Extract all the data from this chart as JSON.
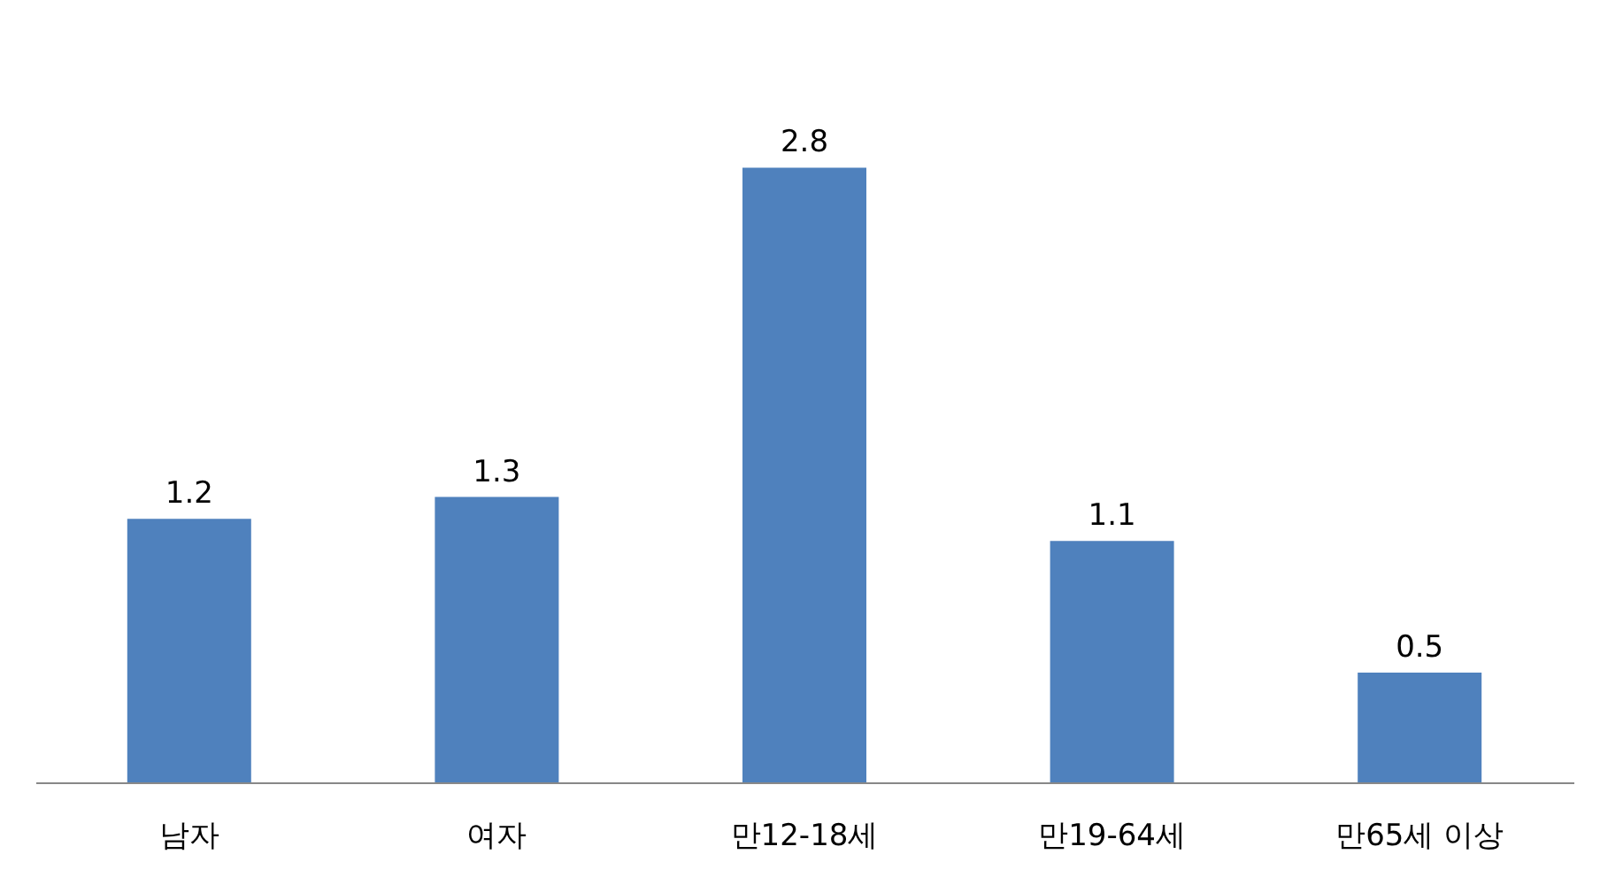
{
  "chart_data": {
    "type": "bar",
    "categories": [
      "남자",
      "여자",
      "만12-18세",
      "만19-64세",
      "만65세 이상"
    ],
    "values": [
      1.2,
      1.3,
      2.8,
      1.1,
      0.5
    ],
    "color": "#4f81bd",
    "data_labels": true
  }
}
